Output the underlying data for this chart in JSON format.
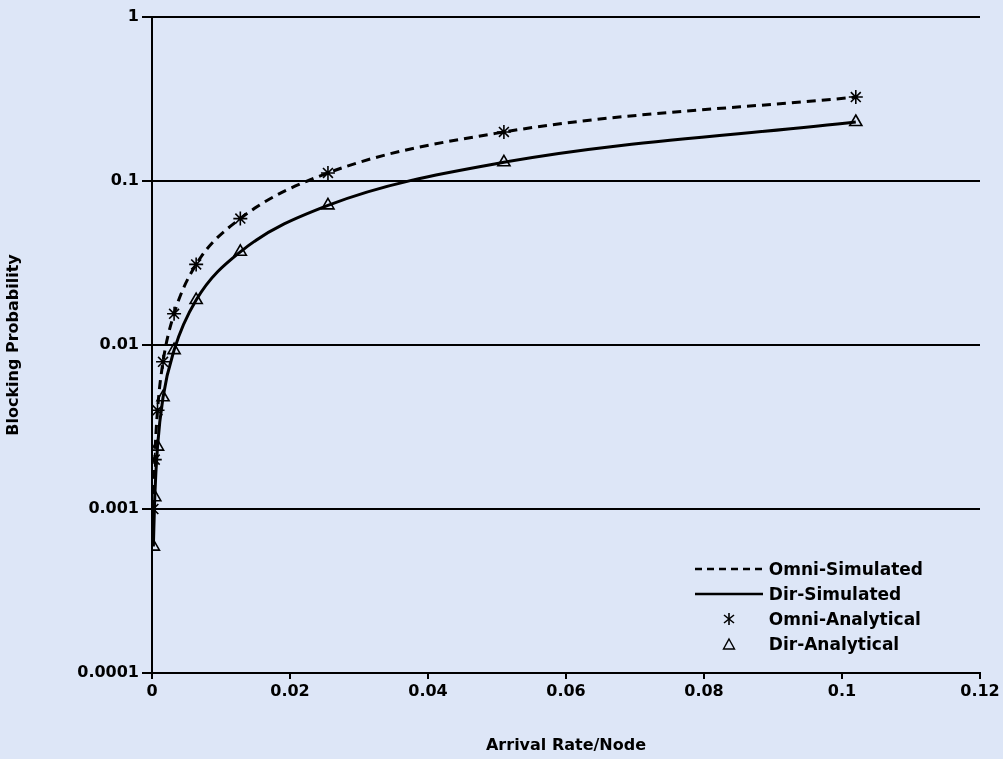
{
  "chart_data": {
    "type": "line",
    "xlabel": "Arrival Rate/Node",
    "ylabel": "Blocking Probability",
    "x": [
      0.0002,
      0.0004,
      0.0008,
      0.0016,
      0.0032,
      0.0064,
      0.0128,
      0.0255,
      0.051,
      0.102
    ],
    "series": [
      {
        "name": "Omni-Simulated",
        "type": "line",
        "color": "#000000",
        "line_style": "dashed",
        "marker": "none",
        "values": [
          0.001,
          0.002,
          0.004,
          0.0079,
          0.0155,
          0.031,
          0.059,
          0.112,
          0.199,
          0.325
        ]
      },
      {
        "name": "Dir-Simulated",
        "type": "line",
        "color": "#000000",
        "line_style": "solid",
        "marker": "none",
        "values": [
          0.00059,
          0.00118,
          0.0024,
          0.0048,
          0.0093,
          0.0188,
          0.037,
          0.071,
          0.13,
          0.229
        ]
      },
      {
        "name": "Omni-Analytical",
        "type": "scatter",
        "color": "#000000",
        "marker": "cross",
        "values": [
          0.001,
          0.002,
          0.004,
          0.0079,
          0.0155,
          0.031,
          0.059,
          0.112,
          0.199,
          0.325
        ]
      },
      {
        "name": "Dir-Analytical",
        "type": "scatter",
        "color": "#000000",
        "marker": "triangle",
        "values": [
          0.00059,
          0.00118,
          0.0024,
          0.0048,
          0.0093,
          0.0188,
          0.037,
          0.071,
          0.13,
          0.229
        ]
      }
    ],
    "xlim": [
      0,
      0.12
    ],
    "xticks": [
      0,
      0.02,
      0.04,
      0.06,
      0.08,
      0.1,
      0.12
    ],
    "ylim": [
      0.0001,
      1
    ],
    "yticks": [
      0.0001,
      0.001,
      0.01,
      0.1,
      1
    ],
    "log": "y",
    "grid": "y",
    "legend": "bottom right"
  }
}
